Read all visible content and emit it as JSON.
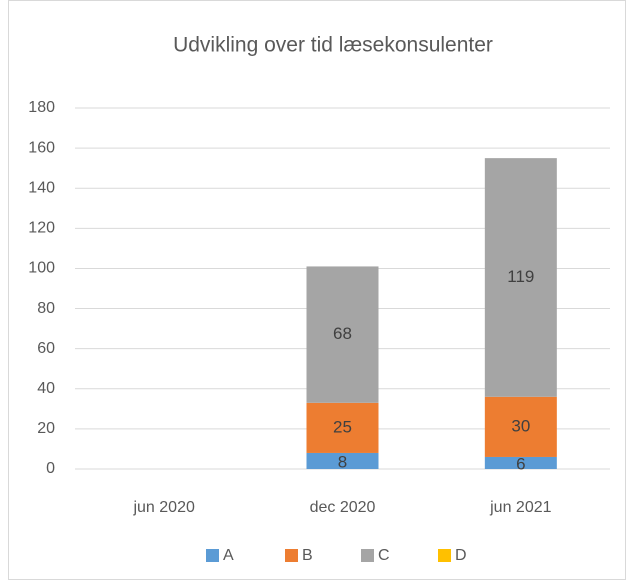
{
  "chart_data": {
    "type": "stacked_bar",
    "title": "Udvikling over tid læsekonsulenter",
    "categories": [
      "jun 2020",
      "dec 2020",
      "jun 2021"
    ],
    "series": [
      {
        "name": "A",
        "color": "#5b9bd5",
        "values": [
          null,
          8,
          6
        ]
      },
      {
        "name": "B",
        "color": "#ed7d31",
        "values": [
          null,
          25,
          30
        ]
      },
      {
        "name": "C",
        "color": "#a5a5a5",
        "values": [
          null,
          68,
          119
        ]
      },
      {
        "name": "D",
        "color": "#ffc000",
        "values": [
          null,
          null,
          null
        ]
      }
    ],
    "ylim": [
      0,
      180
    ],
    "yticks": [
      0,
      20,
      40,
      60,
      80,
      100,
      120,
      140,
      160,
      180
    ],
    "grid": true,
    "legend": "bottom"
  }
}
